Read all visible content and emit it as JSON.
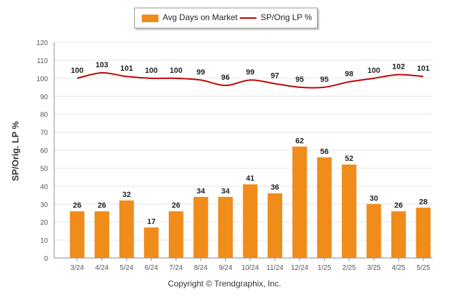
{
  "chart_data": {
    "type": "bar",
    "categories": [
      "3/24",
      "4/24",
      "5/24",
      "6/24",
      "7/24",
      "8/24",
      "9/24",
      "10/24",
      "11/24",
      "12/24",
      "1/25",
      "2/25",
      "3/25",
      "4/25",
      "5/25"
    ],
    "series": [
      {
        "name": "Avg Days on Market",
        "type": "bar",
        "color": "#f08c1a",
        "values": [
          26,
          26,
          32,
          17,
          26,
          34,
          34,
          41,
          36,
          62,
          56,
          52,
          30,
          26,
          28
        ]
      },
      {
        "name": "SP/Orig LP %",
        "type": "line",
        "color": "#c00000",
        "values": [
          100,
          103,
          101,
          100,
          100,
          99,
          96,
          99,
          97,
          95,
          95,
          98,
          100,
          102,
          101
        ]
      }
    ],
    "ylabel": "SP/Orig. LP %",
    "ylim": [
      0,
      120
    ],
    "yticks": [
      0,
      10,
      20,
      30,
      40,
      50,
      60,
      70,
      80,
      90,
      100,
      110,
      120
    ],
    "grid": true,
    "legend": "top-center"
  },
  "legend": {
    "bar_label": "Avg Days on Market",
    "line_label": "SP/Orig LP %"
  },
  "footer": {
    "copyright": "Copyright © Trendgraphix, Inc."
  }
}
